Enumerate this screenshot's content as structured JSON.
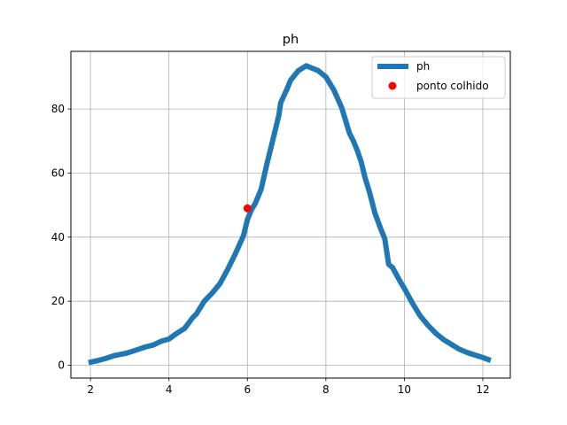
{
  "chart_data": {
    "type": "line",
    "title": "ph",
    "xlabel": "",
    "ylabel": "",
    "xlim": [
      1.5,
      12.7
    ],
    "ylim": [
      -4,
      98
    ],
    "xticks": [
      2,
      4,
      6,
      8,
      10,
      12
    ],
    "yticks": [
      0,
      20,
      40,
      60,
      80
    ],
    "grid": true,
    "legend_position": "top-right",
    "series": [
      {
        "name": "ph",
        "kind": "line",
        "color": "#1f77b4",
        "x": [
          1.95,
          2.2,
          2.4,
          2.6,
          2.9,
          3.1,
          3.4,
          3.6,
          3.8,
          4.0,
          4.2,
          4.4,
          4.6,
          4.7,
          4.9,
          5.1,
          5.3,
          5.5,
          5.7,
          5.9,
          6.0,
          6.1,
          6.2,
          6.35,
          6.5,
          6.6,
          6.7,
          6.8,
          6.85,
          7.0,
          7.1,
          7.3,
          7.5,
          7.6,
          7.8,
          8.0,
          8.2,
          8.4,
          8.6,
          8.7,
          8.8,
          8.9,
          9.0,
          9.1,
          9.25,
          9.4,
          9.5,
          9.55,
          9.6,
          9.7,
          9.9,
          10.0,
          10.2,
          10.4,
          10.6,
          10.8,
          11.0,
          11.2,
          11.4,
          11.6,
          11.8,
          12.0,
          12.2
        ],
        "y": [
          0.8,
          1.5,
          2.2,
          3.0,
          3.7,
          4.5,
          5.7,
          6.3,
          7.5,
          8.2,
          10.0,
          11.5,
          14.8,
          16.0,
          20.0,
          22.5,
          25.5,
          30.0,
          35.0,
          40.5,
          45.5,
          48.5,
          50.5,
          55.0,
          63.0,
          68.0,
          73.0,
          78.0,
          82.0,
          86.0,
          89.0,
          92.0,
          93.5,
          93.0,
          92.0,
          90.0,
          86.0,
          80.5,
          72.5,
          70.0,
          67.0,
          63.5,
          58.5,
          54.5,
          47.5,
          42.5,
          39.5,
          35.5,
          31.5,
          30.5,
          26.0,
          24.0,
          19.5,
          15.5,
          12.5,
          10.0,
          8.0,
          6.5,
          5.0,
          4.0,
          3.2,
          2.4,
          1.5
        ]
      },
      {
        "name": "ponto colhido",
        "kind": "point",
        "color": "#ff0000",
        "x": [
          6.0
        ],
        "y": [
          49.0
        ]
      }
    ]
  },
  "legend": {
    "line_label": "ph",
    "point_label": "ponto colhido"
  }
}
